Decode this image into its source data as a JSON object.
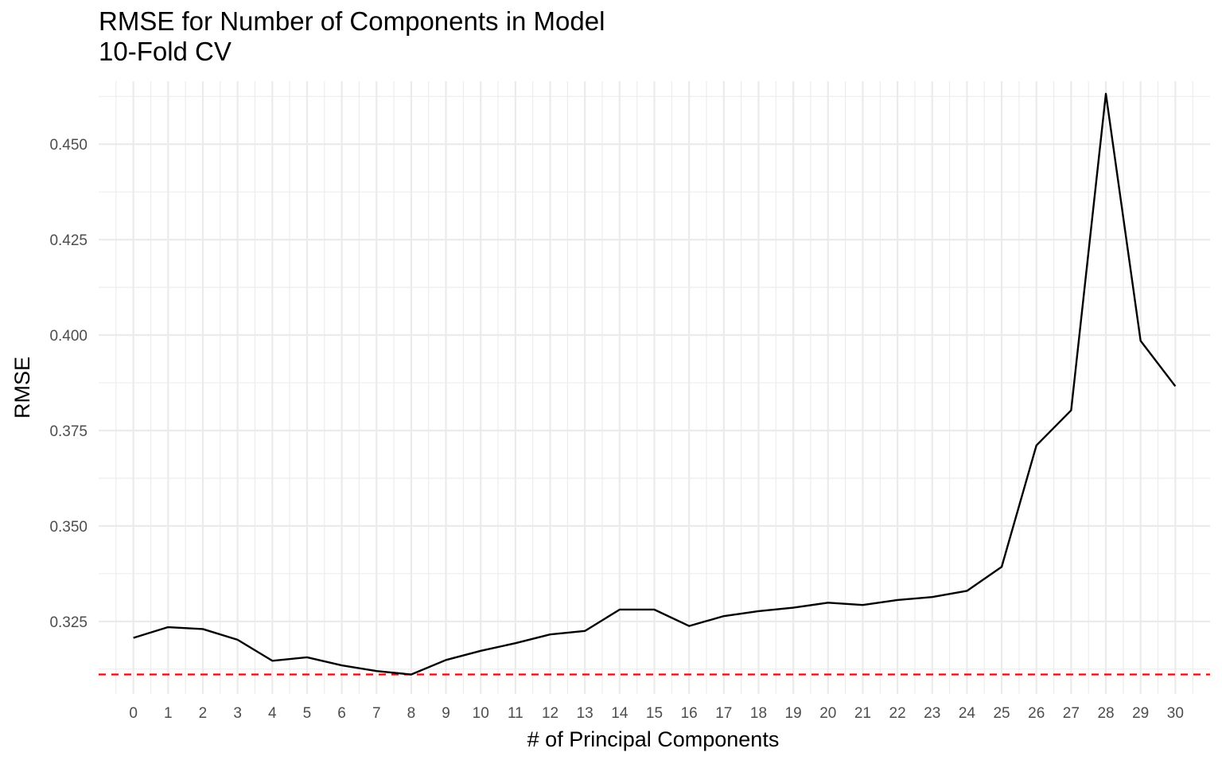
{
  "chart_data": {
    "type": "line",
    "title": "RMSE for Number of Components in Model",
    "subtitle": "10-Fold CV",
    "xlabel": "# of Principal Components",
    "ylabel": "RMSE",
    "x": [
      0,
      1,
      2,
      3,
      4,
      5,
      6,
      7,
      8,
      9,
      10,
      11,
      12,
      13,
      14,
      15,
      16,
      17,
      18,
      19,
      20,
      21,
      22,
      23,
      24,
      25,
      26,
      27,
      28,
      29,
      30
    ],
    "series": [
      {
        "values": [
          0.3207,
          0.3235,
          0.323,
          0.3202,
          0.3147,
          0.3156,
          0.3135,
          0.312,
          0.3111,
          0.3149,
          0.3173,
          0.3193,
          0.3216,
          0.3225,
          0.3281,
          0.3281,
          0.3238,
          0.3264,
          0.3277,
          0.3286,
          0.3299,
          0.3293,
          0.3306,
          0.3314,
          0.333,
          0.3393,
          0.3711,
          0.3803,
          0.4632,
          0.3985,
          0.3866
        ],
        "color": "#000000"
      }
    ],
    "reference_line": {
      "y": 0.3111,
      "color": "#ff0000",
      "style": "dashed"
    },
    "xlim": [
      -1,
      31
    ],
    "ylim": [
      0.306,
      0.4665
    ],
    "y_ticks": [
      0.325,
      0.35,
      0.375,
      0.4,
      0.425,
      0.45
    ],
    "y_tick_labels": [
      "0.325",
      "0.350",
      "0.375",
      "0.400",
      "0.425",
      "0.450"
    ],
    "x_tick_labels": [
      "0",
      "1",
      "2",
      "3",
      "4",
      "5",
      "6",
      "7",
      "8",
      "9",
      "10",
      "11",
      "12",
      "13",
      "14",
      "15",
      "16",
      "17",
      "18",
      "19",
      "20",
      "21",
      "22",
      "23",
      "24",
      "25",
      "26",
      "27",
      "28",
      "29",
      "30"
    ],
    "grid": true,
    "grid_color": "#ebebeb"
  }
}
